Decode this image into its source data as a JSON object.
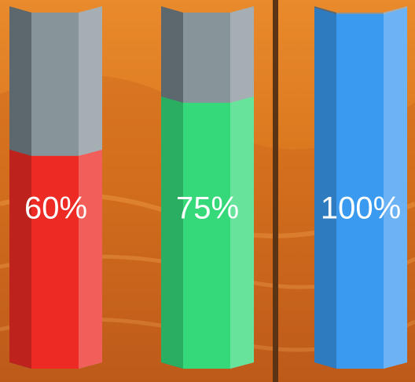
{
  "chart_data": {
    "type": "bar",
    "values": [
      60,
      75,
      100
    ],
    "value_labels": [
      "60%",
      "75%",
      "100%"
    ],
    "colors": [
      "#ee2a24",
      "#35d97a",
      "#3a9af0"
    ],
    "ylim": [
      0,
      100
    ]
  }
}
